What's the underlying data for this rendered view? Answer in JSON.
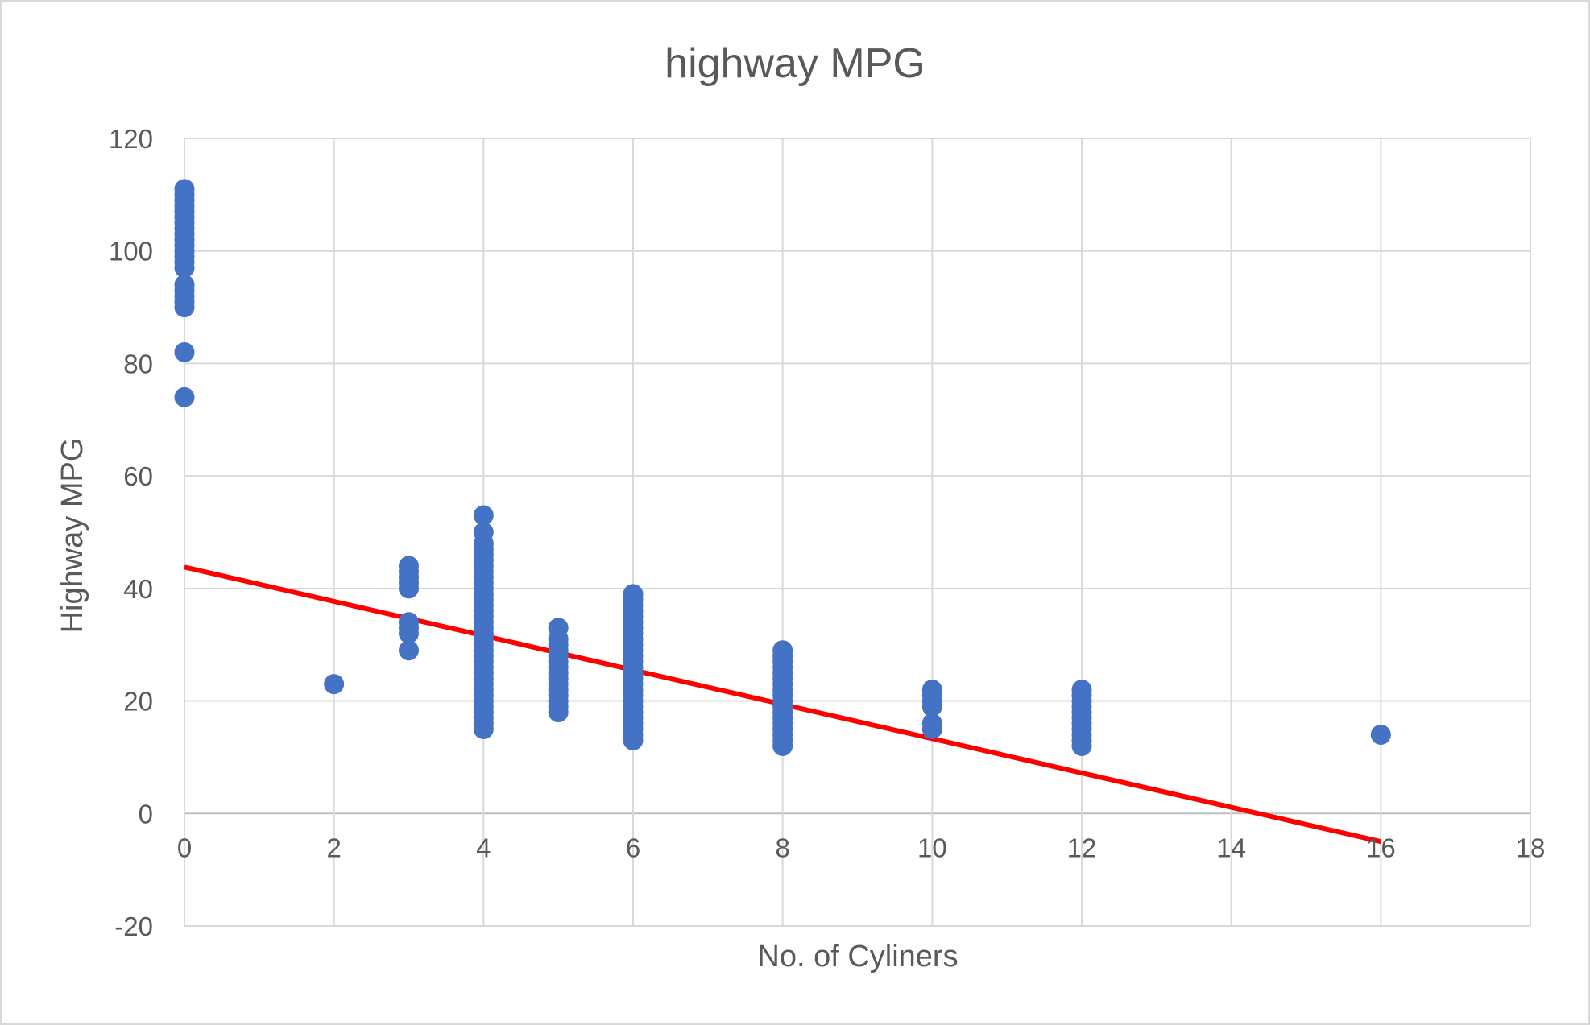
{
  "chart_data": {
    "type": "scatter",
    "title": "highway MPG",
    "xlabel": "No. of Cyliners",
    "ylabel": "Highway MPG",
    "xlim": [
      0,
      18
    ],
    "ylim": [
      -20,
      120
    ],
    "x_ticks": [
      0,
      2,
      4,
      6,
      8,
      10,
      12,
      14,
      16,
      18
    ],
    "y_ticks": [
      -20,
      0,
      20,
      40,
      60,
      80,
      100,
      120
    ],
    "grid": true,
    "legend": "none",
    "colors": {
      "points": "#4472c4",
      "trendline": "#ff0000"
    },
    "series": [
      {
        "points": [
          [
            0,
            74
          ],
          [
            0,
            82
          ],
          [
            0,
            90
          ],
          [
            0,
            91
          ],
          [
            0,
            92
          ],
          [
            0,
            93
          ],
          [
            0,
            94
          ],
          [
            0,
            97
          ],
          [
            0,
            98
          ],
          [
            0,
            99
          ],
          [
            0,
            100
          ],
          [
            0,
            101
          ],
          [
            0,
            102
          ],
          [
            0,
            103
          ],
          [
            0,
            104
          ],
          [
            0,
            105
          ],
          [
            0,
            106
          ],
          [
            0,
            107
          ],
          [
            0,
            108
          ],
          [
            0,
            109
          ],
          [
            0,
            110
          ],
          [
            0,
            111
          ],
          [
            2,
            23
          ],
          [
            3,
            29
          ],
          [
            3,
            32
          ],
          [
            3,
            33
          ],
          [
            3,
            34
          ],
          [
            3,
            40
          ],
          [
            3,
            41
          ],
          [
            3,
            42
          ],
          [
            3,
            43
          ],
          [
            3,
            44
          ],
          [
            4,
            15
          ],
          [
            4,
            16
          ],
          [
            4,
            17
          ],
          [
            4,
            18
          ],
          [
            4,
            19
          ],
          [
            4,
            20
          ],
          [
            4,
            21
          ],
          [
            4,
            22
          ],
          [
            4,
            23
          ],
          [
            4,
            24
          ],
          [
            4,
            25
          ],
          [
            4,
            26
          ],
          [
            4,
            27
          ],
          [
            4,
            28
          ],
          [
            4,
            29
          ],
          [
            4,
            30
          ],
          [
            4,
            31
          ],
          [
            4,
            32
          ],
          [
            4,
            33
          ],
          [
            4,
            34
          ],
          [
            4,
            35
          ],
          [
            4,
            36
          ],
          [
            4,
            37
          ],
          [
            4,
            38
          ],
          [
            4,
            39
          ],
          [
            4,
            40
          ],
          [
            4,
            41
          ],
          [
            4,
            42
          ],
          [
            4,
            43
          ],
          [
            4,
            44
          ],
          [
            4,
            45
          ],
          [
            4,
            46
          ],
          [
            4,
            47
          ],
          [
            4,
            48
          ],
          [
            4,
            50
          ],
          [
            4,
            53
          ],
          [
            5,
            18
          ],
          [
            5,
            19
          ],
          [
            5,
            20
          ],
          [
            5,
            21
          ],
          [
            5,
            22
          ],
          [
            5,
            23
          ],
          [
            5,
            24
          ],
          [
            5,
            25
          ],
          [
            5,
            26
          ],
          [
            5,
            27
          ],
          [
            5,
            28
          ],
          [
            5,
            29
          ],
          [
            5,
            30
          ],
          [
            5,
            31
          ],
          [
            5,
            33
          ],
          [
            6,
            13
          ],
          [
            6,
            14
          ],
          [
            6,
            15
          ],
          [
            6,
            16
          ],
          [
            6,
            17
          ],
          [
            6,
            18
          ],
          [
            6,
            19
          ],
          [
            6,
            20
          ],
          [
            6,
            21
          ],
          [
            6,
            22
          ],
          [
            6,
            23
          ],
          [
            6,
            24
          ],
          [
            6,
            25
          ],
          [
            6,
            26
          ],
          [
            6,
            27
          ],
          [
            6,
            28
          ],
          [
            6,
            29
          ],
          [
            6,
            30
          ],
          [
            6,
            31
          ],
          [
            6,
            32
          ],
          [
            6,
            33
          ],
          [
            6,
            34
          ],
          [
            6,
            35
          ],
          [
            6,
            36
          ],
          [
            6,
            37
          ],
          [
            6,
            38
          ],
          [
            6,
            39
          ],
          [
            8,
            12
          ],
          [
            8,
            13
          ],
          [
            8,
            14
          ],
          [
            8,
            15
          ],
          [
            8,
            16
          ],
          [
            8,
            17
          ],
          [
            8,
            18
          ],
          [
            8,
            19
          ],
          [
            8,
            20
          ],
          [
            8,
            21
          ],
          [
            8,
            22
          ],
          [
            8,
            23
          ],
          [
            8,
            24
          ],
          [
            8,
            25
          ],
          [
            8,
            26
          ],
          [
            8,
            27
          ],
          [
            8,
            28
          ],
          [
            8,
            29
          ],
          [
            10,
            15
          ],
          [
            10,
            16
          ],
          [
            10,
            19
          ],
          [
            10,
            20
          ],
          [
            10,
            21
          ],
          [
            10,
            22
          ],
          [
            12,
            12
          ],
          [
            12,
            13
          ],
          [
            12,
            14
          ],
          [
            12,
            15
          ],
          [
            12,
            16
          ],
          [
            12,
            17
          ],
          [
            12,
            18
          ],
          [
            12,
            19
          ],
          [
            12,
            20
          ],
          [
            12,
            21
          ],
          [
            12,
            22
          ],
          [
            16,
            14
          ]
        ]
      }
    ],
    "trendline": {
      "x": [
        0,
        16
      ],
      "y": [
        43.8,
        -5
      ]
    }
  }
}
